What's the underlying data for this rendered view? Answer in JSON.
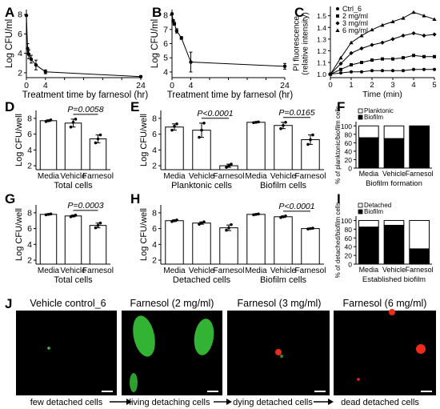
{
  "panel_letters": [
    "A",
    "B",
    "C",
    "D",
    "E",
    "F",
    "G",
    "H",
    "I",
    "J"
  ],
  "chart_data": [
    {
      "panel": "A",
      "type": "line",
      "xlabel": "Treatment time by farnesol (hr)",
      "ylabel": "Log CFU/ml",
      "xticks": [
        "0",
        "4",
        "8",
        "12",
        "16",
        "20",
        "24"
      ],
      "yticks": [
        "2",
        "4",
        "6",
        "8"
      ],
      "xlim": [
        0,
        24
      ],
      "ylim": [
        1.5,
        8.5
      ],
      "series": [
        {
          "x": [
            0,
            0.25,
            0.5,
            1,
            2,
            4,
            24
          ],
          "y": [
            7.9,
            4.5,
            3.9,
            3.4,
            2.8,
            2.1,
            1.6
          ],
          "err": [
            0,
            0.5,
            0.45,
            0.4,
            0.5,
            0.2,
            0.1
          ]
        }
      ]
    },
    {
      "panel": "B",
      "type": "line",
      "xlabel": "Treatment time by farnesol (hr)",
      "ylabel": "Log CFU/ml",
      "xticks": [
        "0",
        "4",
        "8",
        "12",
        "16",
        "20",
        "24"
      ],
      "yticks": [
        "4",
        "5",
        "6",
        "7",
        "8"
      ],
      "xlim": [
        0,
        24
      ],
      "ylim": [
        3.6,
        8.4
      ],
      "series": [
        {
          "x": [
            0,
            0.25,
            0.5,
            1,
            2,
            4,
            24
          ],
          "y": [
            8.1,
            7.6,
            7.4,
            6.9,
            6.4,
            4.7,
            4.4
          ],
          "err": [
            0.05,
            0.1,
            0.1,
            0.15,
            0.1,
            0.7,
            0.2
          ]
        }
      ]
    },
    {
      "panel": "C",
      "type": "line",
      "xlabel": "Time (min)",
      "ylabel": "PI fluorescence\n(relative intensity)",
      "xticks": [
        "0",
        "1",
        "2",
        "3",
        "4",
        "5"
      ],
      "yticks": [
        "1.0",
        "1.1",
        "1.2",
        "1.3",
        "1.4",
        "1.5"
      ],
      "xlim": [
        0,
        5
      ],
      "ylim": [
        0.97,
        1.58
      ],
      "x": [
        0,
        0.5,
        1,
        1.5,
        2,
        2.5,
        3,
        3.5,
        4,
        4.5,
        5
      ],
      "series": [
        {
          "name": "Ctrl_6",
          "values": [
            1.0,
            1.01,
            1.02,
            1.02,
            1.03,
            1.03,
            1.03,
            1.03,
            1.04,
            1.04,
            1.04
          ],
          "marker": "circle"
        },
        {
          "name": "2 mg/ml",
          "values": [
            1.0,
            1.04,
            1.08,
            1.1,
            1.12,
            1.13,
            1.13,
            1.14,
            1.16,
            1.15,
            1.15
          ],
          "marker": "square"
        },
        {
          "name": "3 mg/ml",
          "values": [
            1.0,
            1.09,
            1.18,
            1.22,
            1.25,
            1.27,
            1.3,
            1.33,
            1.35,
            1.33,
            1.34
          ],
          "marker": "diamond"
        },
        {
          "name": "6 mg/ml",
          "values": [
            1.0,
            1.14,
            1.27,
            1.33,
            1.38,
            1.42,
            1.45,
            1.48,
            1.53,
            1.5,
            1.47
          ],
          "marker": "triangle"
        }
      ],
      "legend_position": "top-left"
    },
    {
      "panel": "D",
      "type": "bar",
      "ylabel": "Log CFU/well",
      "xlabel": "Total cells",
      "categories": [
        "Media",
        "Vehicle",
        "Farnesol"
      ],
      "values": [
        7.7,
        7.4,
        5.4
      ],
      "err": [
        0.1,
        0.5,
        0.5
      ],
      "points": [
        [
          7.6,
          7.7,
          7.8
        ],
        [
          6.9,
          7.5,
          7.9
        ],
        [
          4.9,
          5.4,
          5.9
        ]
      ],
      "yticks": [
        "2",
        "4",
        "6",
        "8"
      ],
      "ylim": [
        1.5,
        9
      ],
      "annotation": {
        "text": "P=0.0058",
        "from": 1,
        "to": 2
      }
    },
    {
      "panel": "E",
      "type": "bar",
      "ylabel": "Log CFU/well",
      "categories": [
        "Media",
        "Vehicle",
        "Farnesol",
        "Media",
        "Vehicle",
        "Farnesol"
      ],
      "values": [
        6.9,
        6.5,
        2.0,
        7.5,
        7.1,
        5.3
      ],
      "err": [
        0.4,
        0.9,
        0.2,
        0.05,
        0.4,
        0.6
      ],
      "points": [
        [
          6.5,
          7.0,
          7.3
        ],
        [
          5.6,
          6.5,
          7.4
        ],
        [
          1.8,
          2.0,
          2.2
        ],
        [
          7.45,
          7.5,
          7.55
        ],
        [
          6.7,
          7.1,
          7.5
        ],
        [
          4.7,
          5.3,
          5.9
        ]
      ],
      "group_labels": [
        "Planktonic cells",
        "Biofilm cells"
      ],
      "yticks": [
        "2",
        "4",
        "6",
        "8"
      ],
      "ylim": [
        1.5,
        9
      ],
      "annotations": [
        {
          "text": "P<0.0001",
          "from": 1,
          "to": 2
        },
        {
          "text": "P=0.0165",
          "from": 4,
          "to": 5
        }
      ]
    },
    {
      "panel": "F",
      "type": "bar",
      "stacked": true,
      "ylabel": "% of planktonic/biofilm cells",
      "xlabel": "Biofilm formation",
      "categories": [
        "Media",
        "Vehicle",
        "Farnesol"
      ],
      "series": [
        {
          "name": "Biofilm",
          "values": [
            72,
            70,
            100
          ]
        },
        {
          "name": "Planktonic",
          "values": [
            28,
            30,
            0
          ]
        }
      ],
      "yticks": [
        "0",
        "20",
        "40",
        "60",
        "80",
        "100"
      ],
      "ylim": [
        0,
        110
      ],
      "legend_position": "top-left"
    },
    {
      "panel": "G",
      "type": "bar",
      "ylabel": "Log CFU/well",
      "xlabel": "Total cells",
      "categories": [
        "Media",
        "Vehicle",
        "Farnesol"
      ],
      "values": [
        7.8,
        7.6,
        6.4
      ],
      "err": [
        0.05,
        0.1,
        0.3
      ],
      "points": [
        [
          7.75,
          7.8,
          7.85
        ],
        [
          7.5,
          7.6,
          7.7
        ],
        [
          6.1,
          6.4,
          6.7
        ]
      ],
      "yticks": [
        "2",
        "4",
        "6",
        "8"
      ],
      "ylim": [
        1.5,
        9
      ],
      "annotation": {
        "text": "P=0.0003",
        "from": 1,
        "to": 2
      }
    },
    {
      "panel": "H",
      "type": "bar",
      "ylabel": "Log CFU/well",
      "categories": [
        "Media",
        "Vehicle",
        "Farnesol",
        "Media",
        "Vehicle",
        "Farnesol"
      ],
      "values": [
        7.0,
        6.7,
        6.1,
        7.8,
        7.5,
        6.0
      ],
      "err": [
        0.1,
        0.15,
        0.35,
        0.05,
        0.1,
        0.05
      ],
      "points": [
        [
          6.9,
          7.0,
          7.1
        ],
        [
          6.55,
          6.7,
          6.85
        ],
        [
          5.8,
          6.1,
          6.5
        ],
        [
          7.75,
          7.8,
          7.85
        ],
        [
          7.4,
          7.5,
          7.6
        ],
        [
          5.95,
          6.0,
          6.05
        ]
      ],
      "group_labels": [
        "Detached cells",
        "Biofilm cells"
      ],
      "yticks": [
        "2",
        "4",
        "6",
        "8"
      ],
      "ylim": [
        1.5,
        9
      ],
      "annotations": [
        {
          "text": "P<0.0001",
          "from": 4,
          "to": 5
        }
      ]
    },
    {
      "panel": "I",
      "type": "bar",
      "stacked": true,
      "ylabel": "% of detached/biofilm cells",
      "xlabel": "Established biofilm",
      "categories": [
        "Media",
        "Vehicle",
        "Farnesol"
      ],
      "series": [
        {
          "name": "Biofilm",
          "values": [
            85,
            89,
            35
          ]
        },
        {
          "name": "Detached",
          "values": [
            15,
            11,
            65
          ]
        }
      ],
      "yticks": [
        "0",
        "20",
        "40",
        "60",
        "80",
        "100"
      ],
      "ylim": [
        0,
        110
      ],
      "legend_position": "top-left"
    }
  ],
  "micrographs": {
    "titles": [
      "Vehicle control_6",
      "Farnesol (2 mg/ml)",
      "Farnesol (3 mg/ml)",
      "Farnesol (6 mg/ml)"
    ],
    "captions": [
      "few detached cells",
      "living detaching cells",
      "dying detached cells",
      "dead detached cells"
    ]
  },
  "colors": {
    "bar_fill": "#ffffff",
    "stack_dark": "#000000",
    "stack_light": "#ffffff",
    "micro_bg": "#000000",
    "live_stain": "#39c739",
    "dead_stain": "#ee2a1a",
    "scale_bar": "#ffffff"
  }
}
